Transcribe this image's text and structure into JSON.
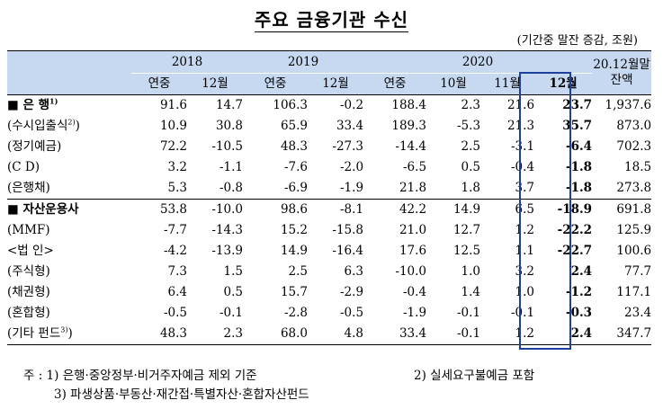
{
  "title": "주요 금융기관 수신",
  "unit": "(기간중 말잔 증감, 조원)",
  "header": {
    "years": [
      "2018",
      "2019",
      "2020"
    ],
    "sub": [
      "연중",
      "12월",
      "연중",
      "12월",
      "연중",
      "10월",
      "11월",
      "12월"
    ],
    "last_col_line1": "20.12월말",
    "last_col_line2": "잔액"
  },
  "rows": [
    {
      "label": "■ 은  행",
      "sup": "1)",
      "bold": true,
      "values": [
        "91.6",
        "14.7",
        "106.3",
        "-0.2",
        "188.4",
        "2.3",
        "21.6",
        "23.7",
        "1,937.6"
      ]
    },
    {
      "label": "(수시입출식",
      "sup": "2)",
      "suffix": ")",
      "bold": false,
      "values": [
        "10.9",
        "30.8",
        "65.9",
        "33.4",
        "189.3",
        "-5.3",
        "21.3",
        "35.7",
        "873.0"
      ]
    },
    {
      "label": "(정기예금)",
      "bold": false,
      "values": [
        "72.2",
        "-10.5",
        "48.3",
        "-27.3",
        "-14.4",
        "2.5",
        "-3.1",
        "-6.4",
        "702.3"
      ]
    },
    {
      "label": "(C  D)",
      "bold": false,
      "values": [
        "3.2",
        "-1.1",
        "-7.6",
        "-2.0",
        "-6.5",
        "0.5",
        "-0.4",
        "-1.8",
        "18.5"
      ]
    },
    {
      "label": "(은행채)",
      "bold": false,
      "values": [
        "5.3",
        "-0.8",
        "-6.9",
        "-1.9",
        "21.8",
        "1.8",
        "3.7",
        "-1.8",
        "273.8"
      ]
    },
    {
      "label": "■ 자산운용사",
      "bold": true,
      "values": [
        "53.8",
        "-10.0",
        "98.6",
        "-8.1",
        "42.2",
        "14.9",
        "6.5",
        "-18.9",
        "691.8"
      ]
    },
    {
      "label": "(MMF)",
      "bold": false,
      "values": [
        "-7.7",
        "-14.3",
        "15.2",
        "-15.8",
        "21.0",
        "12.7",
        "1.2",
        "-22.2",
        "125.9"
      ]
    },
    {
      "label": "  <법  인>",
      "bold": false,
      "values": [
        "-4.2",
        "-13.9",
        "14.9",
        "-16.4",
        "17.6",
        "12.5",
        "1.1",
        "-22.7",
        "100.6"
      ]
    },
    {
      "label": "(주식형)",
      "bold": false,
      "values": [
        "7.3",
        "1.5",
        "2.5",
        "6.3",
        "-10.0",
        "1.0",
        "3.2",
        "2.4",
        "77.7"
      ]
    },
    {
      "label": "(채권형)",
      "bold": false,
      "values": [
        "6.4",
        "0.5",
        "15.7",
        "-2.9",
        "-0.4",
        "1.4",
        "1.0",
        "-1.2",
        "117.1"
      ]
    },
    {
      "label": "(혼합형)",
      "bold": false,
      "values": [
        "-0.5",
        "-0.1",
        "-2.8",
        "-0.5",
        "-1.9",
        "-0.1",
        "-0.1",
        "-0.3",
        "23.4"
      ]
    },
    {
      "label": "(기타 펀드",
      "sup": "3)",
      "suffix": ")",
      "bold": false,
      "values": [
        "48.3",
        "2.3",
        "68.0",
        "4.8",
        "33.4",
        "-0.1",
        "1.2",
        "2.4",
        "347.7"
      ]
    }
  ],
  "notes": {
    "n1": "주 : 1)  은행·중앙정부·비거주자예금 제외 기준",
    "n2": "2)  실세요구불예금 포함",
    "n3": "3)  파생상품·부동산·재간접·특별자산·혼합자산펀드"
  },
  "colors": {
    "header_bg": "#c6d9f1",
    "highlight_border": "#1f3fa0"
  }
}
